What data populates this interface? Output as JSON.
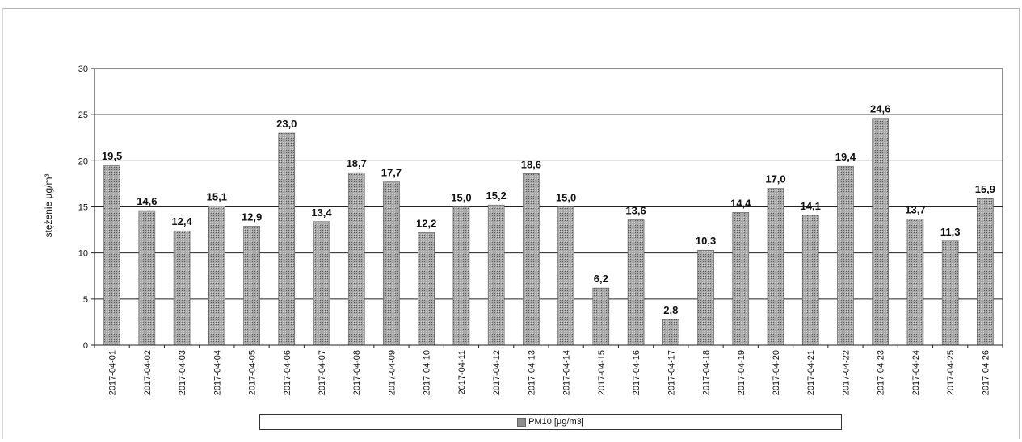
{
  "chart_data": {
    "type": "bar",
    "categories": [
      "2017-04-01",
      "2017-04-02",
      "2017-04-03",
      "2017-04-04",
      "2017-04-05",
      "2017-04-06",
      "2017-04-07",
      "2017-04-08",
      "2017-04-09",
      "2017-04-10",
      "2017-04-11",
      "2017-04-12",
      "2017-04-13",
      "2017-04-14",
      "2017-04-15",
      "2017-04-16",
      "2017-04-17",
      "2017-04-18",
      "2017-04-19",
      "2017-04-20",
      "2017-04-21",
      "2017-04-22",
      "2017-04-23",
      "2017-04-24",
      "2017-04-25",
      "2017-04-26"
    ],
    "series": [
      {
        "name": "PM10  [µg/m3]",
        "values": [
          19.5,
          14.6,
          12.4,
          15.1,
          12.9,
          23.0,
          13.4,
          18.7,
          17.7,
          12.2,
          15.0,
          15.2,
          18.6,
          15.0,
          6.2,
          13.6,
          2.8,
          10.3,
          14.4,
          17.0,
          14.1,
          19.4,
          24.6,
          13.7,
          11.3,
          15.9
        ],
        "labels": [
          "19,5",
          "14,6",
          "12,4",
          "15,1",
          "12,9",
          "23,0",
          "13,4",
          "18,7",
          "17,7",
          "12,2",
          "15,0",
          "15,2",
          "18,6",
          "15,0",
          "6,2",
          "13,6",
          "2,8",
          "10,3",
          "14,4",
          "17,0",
          "14,1",
          "19,4",
          "24,6",
          "13,7",
          "11,3",
          "15,9"
        ]
      }
    ],
    "ylabel": "stężenie µg/m³",
    "ylim": [
      0,
      30
    ],
    "yticks": [
      "0",
      "5",
      "10",
      "15",
      "20",
      "25",
      "30"
    ],
    "grid": true,
    "legend_position": "bottom"
  }
}
